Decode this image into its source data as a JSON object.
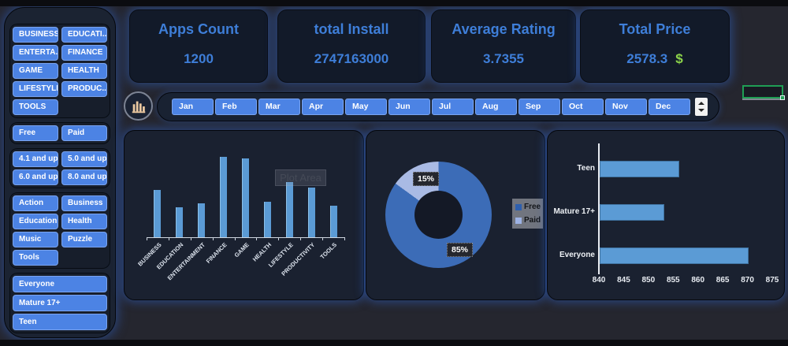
{
  "header_cards": [
    {
      "title": "Apps Count",
      "value": "1200"
    },
    {
      "title": "total Install",
      "value": "2747163000"
    },
    {
      "title": "Average Rating",
      "value": "3.7355"
    },
    {
      "title": "Total Price",
      "value": "2578.3",
      "currency": "$"
    }
  ],
  "sidebar": {
    "category_buttons": [
      "BUSINESS",
      "EDUCATI...",
      "ENTERTA...",
      "FINANCE",
      "GAME",
      "HEALTH",
      "LIFESTYLE",
      "PRODUC...",
      "TOOLS"
    ],
    "type_buttons": [
      "Free",
      "Paid"
    ],
    "rating_buttons": [
      "4.1 and up",
      "5.0 and up",
      "6.0 and up",
      "8.0 and up"
    ],
    "genre_buttons": [
      "Action",
      "Business",
      "Education",
      "Health",
      "Music",
      "Puzzle",
      "Tools"
    ],
    "audience_buttons": [
      "Everyone",
      "Mature 17+",
      "Teen"
    ]
  },
  "slicer": {
    "months": [
      "Jan",
      "Feb",
      "Mar",
      "Apr",
      "May",
      "Jun",
      "Jul",
      "Aug",
      "Sep",
      "Oct",
      "Nov",
      "Dec"
    ]
  },
  "chart_data": [
    {
      "type": "bar",
      "title": "",
      "categories": [
        "BUSINESS",
        "EDUCATION",
        "ENTERTAINMENT",
        "FINANCE",
        "GAME",
        "HEALTH",
        "LIFESTYLE",
        "PRODUCTIVITY",
        "TOOLS"
      ],
      "values": [
        60,
        38,
        43,
        102,
        100,
        45,
        70,
        63,
        40
      ],
      "value_note": "no value axis shown - values are relative estimates",
      "overlay_label": "Plot Area",
      "bar_color": "#5b9bd5",
      "legend_position": "none"
    },
    {
      "type": "pie",
      "donut": true,
      "labels": [
        "Free",
        "Paid"
      ],
      "values": [
        85,
        15
      ],
      "unit": "%",
      "data_labels": [
        "85%",
        "15%"
      ],
      "colors": [
        "#3c6cb7",
        "#a9bae4"
      ],
      "legend": [
        "Free",
        "Paid"
      ],
      "legend_colors": [
        "#2e5fae",
        "#9db2e4"
      ],
      "legend_position": "right"
    },
    {
      "type": "bar",
      "orientation": "horizontal",
      "categories": [
        "Teen",
        "Mature 17+",
        "Everyone"
      ],
      "values": [
        856,
        853,
        870
      ],
      "xlim": [
        840,
        875
      ],
      "xticks": [
        840,
        845,
        850,
        855,
        860,
        865,
        870,
        875
      ],
      "bar_color": "#5b9bd5",
      "legend_position": "none"
    }
  ],
  "colors": {
    "accent_blue": "#4c83e4",
    "kpi_text": "#3e7ed8",
    "bar_fill": "#5b9bd5",
    "donut_free": "#3c6cb7",
    "donut_paid": "#a9bae4",
    "excel_green": "#1f9e54",
    "currency_green": "#8cd44a",
    "glow_blue": "#2f63c6"
  }
}
